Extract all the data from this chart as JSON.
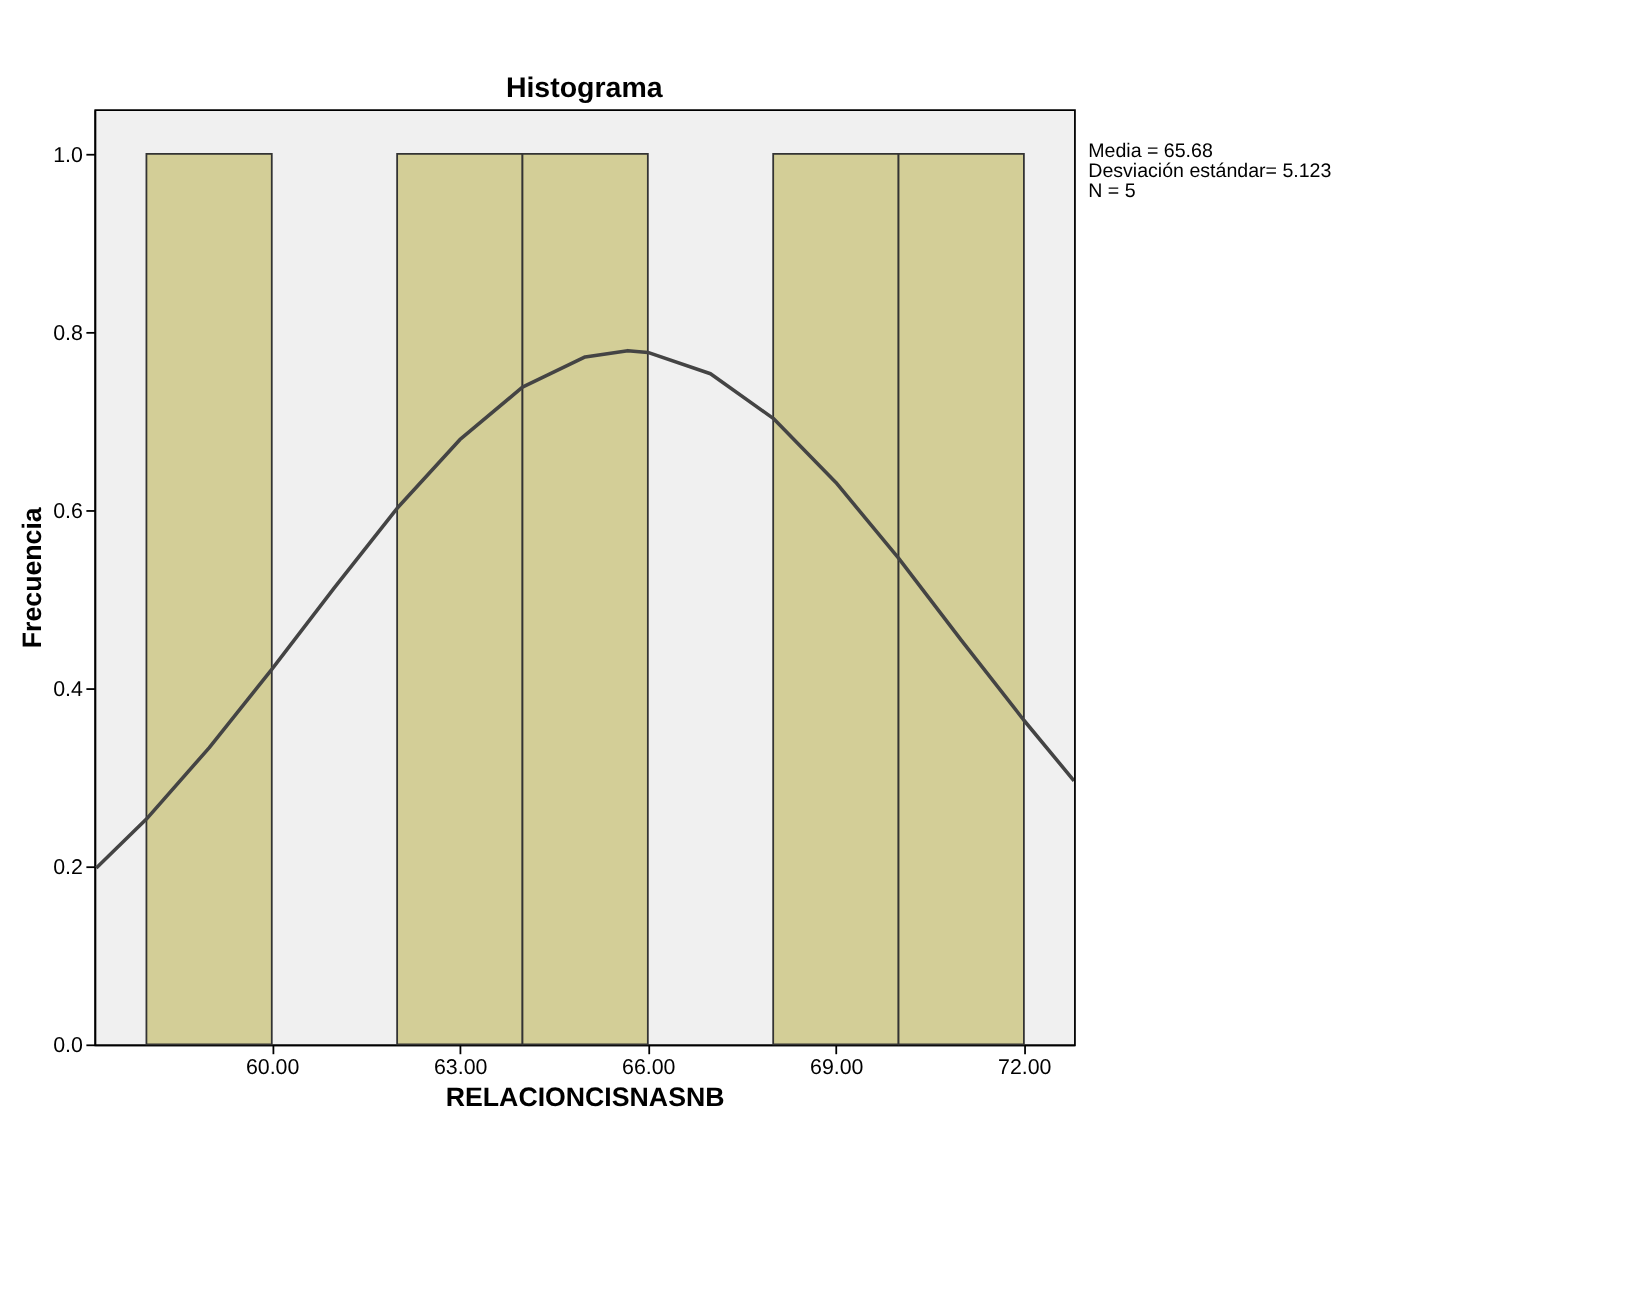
{
  "chart_data": {
    "type": "histogram",
    "title": "Histograma",
    "xlabel": "RELACIONCISNASNB",
    "ylabel": "Frecuencia",
    "bins": [
      58,
      60,
      62,
      64,
      66,
      68,
      70,
      72
    ],
    "values": [
      1,
      0,
      1,
      1,
      0,
      1,
      1
    ],
    "color": "#d3ce97",
    "series": [
      {
        "type": "line",
        "color": "#444444",
        "x": [
          57.2,
          58,
          59,
          60,
          61,
          62,
          63,
          64,
          65,
          65.68,
          66,
          67,
          68,
          69,
          70,
          71,
          72,
          72.8
        ],
        "values": [
          0.198,
          0.253,
          0.333,
          0.421,
          0.513,
          0.602,
          0.679,
          0.738,
          0.772,
          0.779,
          0.777,
          0.753,
          0.703,
          0.631,
          0.546,
          0.454,
          0.364,
          0.296
        ]
      }
    ],
    "xlim": [
      57.17,
      72.8
    ],
    "ylim": [
      0,
      1.05
    ],
    "xticks": [
      {
        "value": 60,
        "label": "60.00"
      },
      {
        "value": 63,
        "label": "63.00"
      },
      {
        "value": 66,
        "label": "66.00"
      },
      {
        "value": 69,
        "label": "69.00"
      },
      {
        "value": 72,
        "label": "72.00"
      }
    ],
    "yticks": [
      {
        "value": 0,
        "label": "0.0"
      },
      {
        "value": 0.2,
        "label": "0.2"
      },
      {
        "value": 0.4,
        "label": "0.4"
      },
      {
        "value": 0.6,
        "label": "0.6"
      },
      {
        "value": 0.8,
        "label": "0.8"
      },
      {
        "value": 1.0,
        "label": "1.0"
      }
    ],
    "grid": false,
    "annotations": [
      "Media = 65.68",
      "Desviación estándar= 5.123",
      "N = 5"
    ]
  }
}
